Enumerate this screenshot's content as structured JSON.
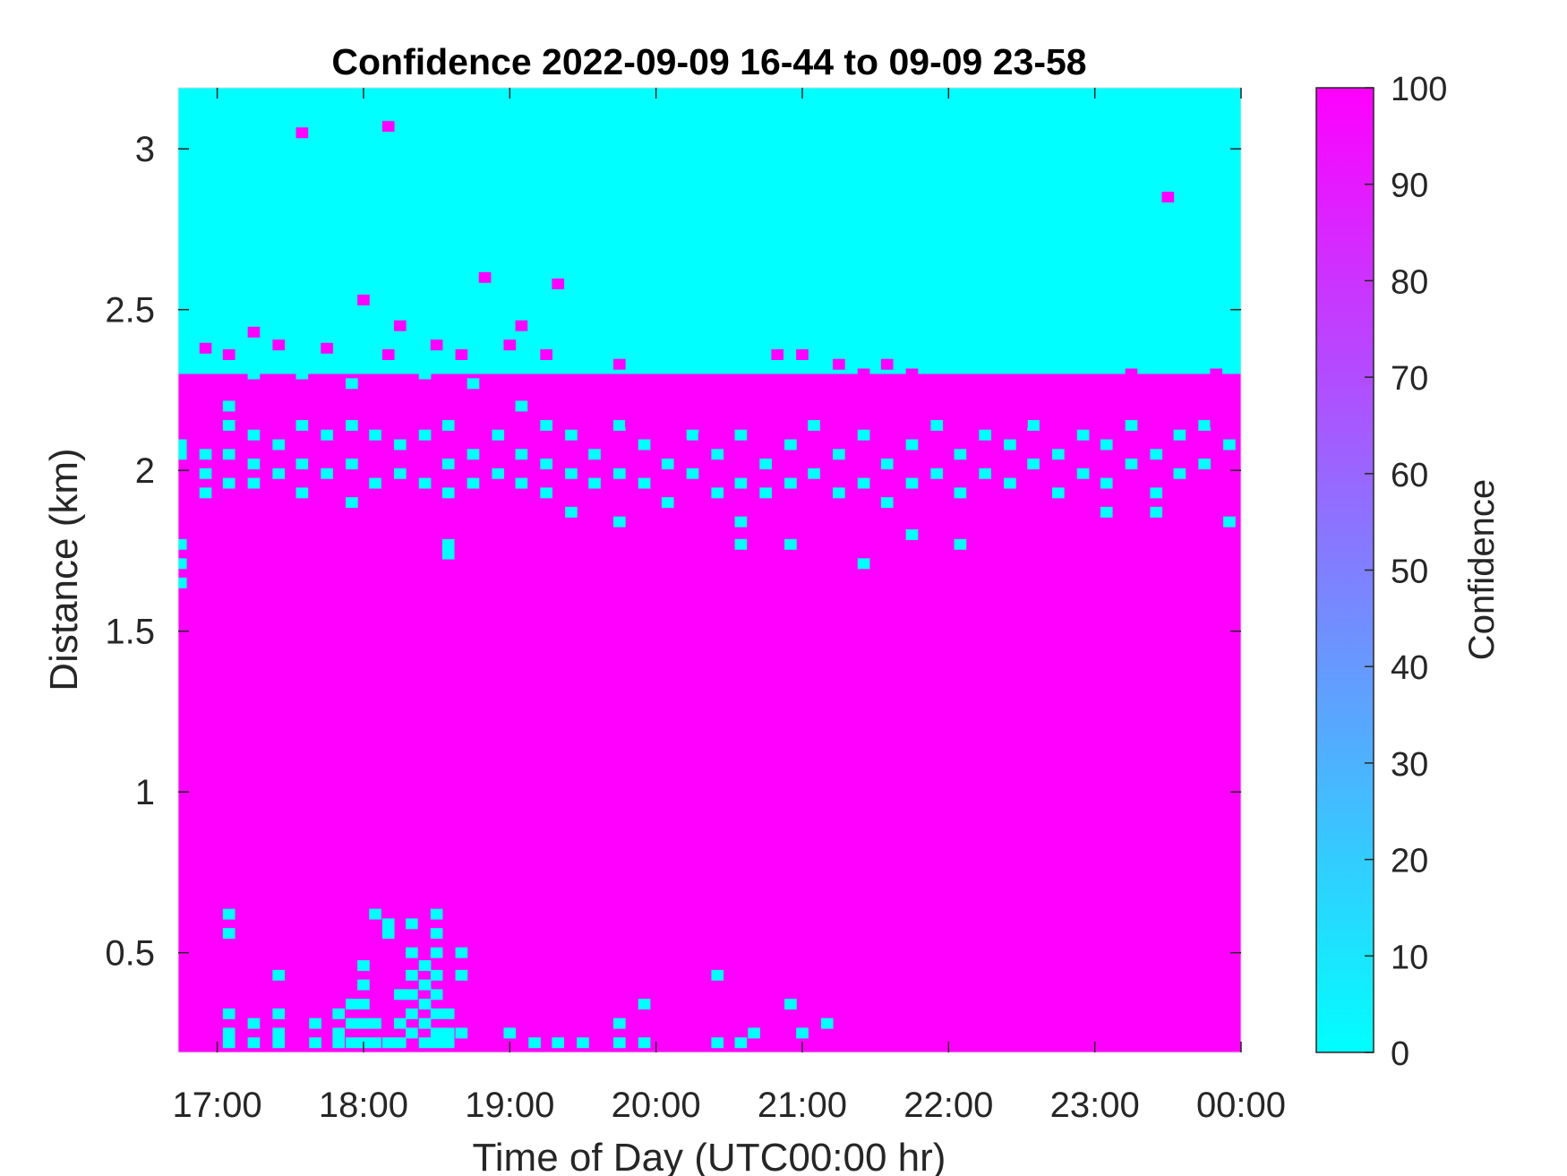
{
  "chart_data": {
    "type": "heatmap",
    "title": "Confidence 2022-09-09 16-44 to 09-09 23-58",
    "xlabel": "Time of Day (UTC00:00 hr)",
    "ylabel": "Distance (km)",
    "colorbar_label": "Confidence",
    "x_range_hours": [
      16.733,
      24.0
    ],
    "y_range_km": [
      0.19,
      3.19
    ],
    "x_ticks": [
      {
        "value": 17,
        "label": "17:00"
      },
      {
        "value": 18,
        "label": "18:00"
      },
      {
        "value": 19,
        "label": "19:00"
      },
      {
        "value": 20,
        "label": "20:00"
      },
      {
        "value": 21,
        "label": "21:00"
      },
      {
        "value": 22,
        "label": "22:00"
      },
      {
        "value": 23,
        "label": "23:00"
      },
      {
        "value": 24,
        "label": "00:00"
      }
    ],
    "y_ticks": [
      {
        "value": 0.5,
        "label": "0.5"
      },
      {
        "value": 1,
        "label": "1"
      },
      {
        "value": 1.5,
        "label": "1.5"
      },
      {
        "value": 2,
        "label": "2"
      },
      {
        "value": 2.5,
        "label": "2.5"
      },
      {
        "value": 3,
        "label": "3"
      }
    ],
    "colorbar_ticks": [
      {
        "value": 0,
        "label": "0"
      },
      {
        "value": 10,
        "label": "10"
      },
      {
        "value": 20,
        "label": "20"
      },
      {
        "value": 30,
        "label": "30"
      },
      {
        "value": 40,
        "label": "40"
      },
      {
        "value": 50,
        "label": "50"
      },
      {
        "value": 60,
        "label": "60"
      },
      {
        "value": 70,
        "label": "70"
      },
      {
        "value": 80,
        "label": "80"
      },
      {
        "value": 90,
        "label": "90"
      },
      {
        "value": 100,
        "label": "100"
      }
    ],
    "colorbar_range": [
      0,
      100
    ],
    "colormap": {
      "low": "#00ffff",
      "high": "#ff00ff"
    },
    "background_value": 100,
    "low_confidence_above_km": 2.3,
    "cyan_cells": [
      [
        16.75,
        2.08
      ],
      [
        16.75,
        2.05
      ],
      [
        16.75,
        1.77
      ],
      [
        16.75,
        1.71
      ],
      [
        16.75,
        1.65
      ],
      [
        16.92,
        2.36
      ],
      [
        16.92,
        2.05
      ],
      [
        16.92,
        1.99
      ],
      [
        16.92,
        1.93
      ],
      [
        17.08,
        2.33
      ],
      [
        17.08,
        2.2
      ],
      [
        17.08,
        2.14
      ],
      [
        17.08,
        2.05
      ],
      [
        17.08,
        1.96
      ],
      [
        17.25,
        2.3
      ],
      [
        17.25,
        2.11
      ],
      [
        17.25,
        2.02
      ],
      [
        17.25,
        1.96
      ],
      [
        17.42,
        2.36
      ],
      [
        17.42,
        2.08
      ],
      [
        17.42,
        1.99
      ],
      [
        17.58,
        2.3
      ],
      [
        17.58,
        2.14
      ],
      [
        17.58,
        2.02
      ],
      [
        17.58,
        1.93
      ],
      [
        17.75,
        2.36
      ],
      [
        17.75,
        2.11
      ],
      [
        17.75,
        1.99
      ],
      [
        17.92,
        2.27
      ],
      [
        17.92,
        2.14
      ],
      [
        17.92,
        2.02
      ],
      [
        17.92,
        1.9
      ],
      [
        18.08,
        2.39
      ],
      [
        18.08,
        2.11
      ],
      [
        18.08,
        1.96
      ],
      [
        18.25,
        2.33
      ],
      [
        18.25,
        2.08
      ],
      [
        18.25,
        1.99
      ],
      [
        18.42,
        2.3
      ],
      [
        18.42,
        2.11
      ],
      [
        18.42,
        1.96
      ],
      [
        18.58,
        2.36
      ],
      [
        18.58,
        2.14
      ],
      [
        18.58,
        2.02
      ],
      [
        18.58,
        1.93
      ],
      [
        18.58,
        1.77
      ],
      [
        18.58,
        1.74
      ],
      [
        18.75,
        2.27
      ],
      [
        18.75,
        2.05
      ],
      [
        18.75,
        1.96
      ],
      [
        18.92,
        2.33
      ],
      [
        18.92,
        2.11
      ],
      [
        18.92,
        1.99
      ],
      [
        19.08,
        2.2
      ],
      [
        19.08,
        2.05
      ],
      [
        19.08,
        1.96
      ],
      [
        19.25,
        2.14
      ],
      [
        19.25,
        2.02
      ],
      [
        19.25,
        1.93
      ],
      [
        19.42,
        2.11
      ],
      [
        19.42,
        1.99
      ],
      [
        19.42,
        1.87
      ],
      [
        19.58,
        2.05
      ],
      [
        19.58,
        1.96
      ],
      [
        19.75,
        2.14
      ],
      [
        19.75,
        1.99
      ],
      [
        19.75,
        1.84
      ],
      [
        19.92,
        2.08
      ],
      [
        19.92,
        1.96
      ],
      [
        20.08,
        2.02
      ],
      [
        20.08,
        1.9
      ],
      [
        20.25,
        2.11
      ],
      [
        20.25,
        1.99
      ],
      [
        20.42,
        2.05
      ],
      [
        20.42,
        1.93
      ],
      [
        20.58,
        2.11
      ],
      [
        20.58,
        1.96
      ],
      [
        20.58,
        1.84
      ],
      [
        20.58,
        1.77
      ],
      [
        20.75,
        2.02
      ],
      [
        20.75,
        1.93
      ],
      [
        20.92,
        2.08
      ],
      [
        20.92,
        1.96
      ],
      [
        20.92,
        1.77
      ],
      [
        21.08,
        2.14
      ],
      [
        21.08,
        1.99
      ],
      [
        21.25,
        2.05
      ],
      [
        21.25,
        1.93
      ],
      [
        21.42,
        2.11
      ],
      [
        21.42,
        1.96
      ],
      [
        21.42,
        1.71
      ],
      [
        21.58,
        2.02
      ],
      [
        21.58,
        1.9
      ],
      [
        21.75,
        2.08
      ],
      [
        21.75,
        1.96
      ],
      [
        21.75,
        1.8
      ],
      [
        21.92,
        2.14
      ],
      [
        21.92,
        1.99
      ],
      [
        22.08,
        2.05
      ],
      [
        22.08,
        1.93
      ],
      [
        22.08,
        1.77
      ],
      [
        22.25,
        2.11
      ],
      [
        22.25,
        1.99
      ],
      [
        22.42,
        2.08
      ],
      [
        22.42,
        1.96
      ],
      [
        22.58,
        2.14
      ],
      [
        22.58,
        2.02
      ],
      [
        22.75,
        2.05
      ],
      [
        22.75,
        1.93
      ],
      [
        22.92,
        2.11
      ],
      [
        22.92,
        1.99
      ],
      [
        23.08,
        2.08
      ],
      [
        23.08,
        1.96
      ],
      [
        23.08,
        1.87
      ],
      [
        23.25,
        2.14
      ],
      [
        23.25,
        2.02
      ],
      [
        23.42,
        2.05
      ],
      [
        23.42,
        1.93
      ],
      [
        23.42,
        1.87
      ],
      [
        23.58,
        2.11
      ],
      [
        23.58,
        1.99
      ],
      [
        23.75,
        2.14
      ],
      [
        23.75,
        2.02
      ],
      [
        23.92,
        2.08
      ],
      [
        23.92,
        1.84
      ],
      [
        17.08,
        0.62
      ],
      [
        17.08,
        0.56
      ],
      [
        17.08,
        0.31
      ],
      [
        17.08,
        0.25
      ],
      [
        17.08,
        0.22
      ],
      [
        17.25,
        0.28
      ],
      [
        17.25,
        0.22
      ],
      [
        17.42,
        0.43
      ],
      [
        17.42,
        0.31
      ],
      [
        17.42,
        0.25
      ],
      [
        17.42,
        0.22
      ],
      [
        17.67,
        0.28
      ],
      [
        17.67,
        0.22
      ],
      [
        17.83,
        0.31
      ],
      [
        17.83,
        0.25
      ],
      [
        17.83,
        0.22
      ],
      [
        17.92,
        0.34
      ],
      [
        17.92,
        0.28
      ],
      [
        17.92,
        0.22
      ],
      [
        18.0,
        0.46
      ],
      [
        18.0,
        0.4
      ],
      [
        18.0,
        0.34
      ],
      [
        18.0,
        0.28
      ],
      [
        18.0,
        0.22
      ],
      [
        18.08,
        0.62
      ],
      [
        18.08,
        0.28
      ],
      [
        18.08,
        0.22
      ],
      [
        18.17,
        0.59
      ],
      [
        18.17,
        0.56
      ],
      [
        18.17,
        0.22
      ],
      [
        18.25,
        0.37
      ],
      [
        18.25,
        0.28
      ],
      [
        18.25,
        0.22
      ],
      [
        18.33,
        0.59
      ],
      [
        18.33,
        0.5
      ],
      [
        18.33,
        0.43
      ],
      [
        18.33,
        0.37
      ],
      [
        18.33,
        0.31
      ],
      [
        18.33,
        0.25
      ],
      [
        18.42,
        0.46
      ],
      [
        18.42,
        0.4
      ],
      [
        18.42,
        0.34
      ],
      [
        18.42,
        0.28
      ],
      [
        18.42,
        0.22
      ],
      [
        18.5,
        0.62
      ],
      [
        18.5,
        0.56
      ],
      [
        18.5,
        0.5
      ],
      [
        18.5,
        0.43
      ],
      [
        18.5,
        0.37
      ],
      [
        18.5,
        0.31
      ],
      [
        18.5,
        0.25
      ],
      [
        18.5,
        0.22
      ],
      [
        18.58,
        0.31
      ],
      [
        18.58,
        0.25
      ],
      [
        18.58,
        0.22
      ],
      [
        18.67,
        0.5
      ],
      [
        18.67,
        0.43
      ],
      [
        18.67,
        0.25
      ],
      [
        19.0,
        0.25
      ],
      [
        19.17,
        0.22
      ],
      [
        19.33,
        0.22
      ],
      [
        19.5,
        0.22
      ],
      [
        19.75,
        0.28
      ],
      [
        19.75,
        0.22
      ],
      [
        19.92,
        0.34
      ],
      [
        19.92,
        0.22
      ],
      [
        20.42,
        0.43
      ],
      [
        20.42,
        0.22
      ],
      [
        20.58,
        0.22
      ],
      [
        20.67,
        0.25
      ],
      [
        20.92,
        0.34
      ],
      [
        21.0,
        0.25
      ],
      [
        21.17,
        0.28
      ]
    ],
    "magenta_cells": [
      [
        17.58,
        3.05
      ],
      [
        18.17,
        3.07
      ],
      [
        23.5,
        2.85
      ],
      [
        18.0,
        2.53
      ],
      [
        18.83,
        2.6
      ],
      [
        19.33,
        2.58
      ],
      [
        17.25,
        2.43
      ],
      [
        18.25,
        2.45
      ],
      [
        19.08,
        2.45
      ],
      [
        16.92,
        2.38
      ],
      [
        17.08,
        2.36
      ],
      [
        17.42,
        2.39
      ],
      [
        17.75,
        2.38
      ],
      [
        18.17,
        2.36
      ],
      [
        18.5,
        2.39
      ],
      [
        18.67,
        2.36
      ],
      [
        19.0,
        2.39
      ],
      [
        19.25,
        2.36
      ],
      [
        19.75,
        2.33
      ],
      [
        20.5,
        2.27
      ],
      [
        20.83,
        2.36
      ],
      [
        21.0,
        2.36
      ],
      [
        21.25,
        2.33
      ],
      [
        21.42,
        2.3
      ],
      [
        21.58,
        2.33
      ],
      [
        21.75,
        2.3
      ],
      [
        21.92,
        2.27
      ],
      [
        22.08,
        2.24
      ],
      [
        22.25,
        2.21
      ],
      [
        22.42,
        2.24
      ],
      [
        22.58,
        2.2
      ],
      [
        23.25,
        2.3
      ],
      [
        23.58,
        2.27
      ],
      [
        23.83,
        2.3
      ],
      [
        23.92,
        2.24
      ],
      [
        24.0,
        2.2
      ],
      [
        21.17,
        2.21
      ],
      [
        21.33,
        2.18
      ],
      [
        21.5,
        2.21
      ],
      [
        21.67,
        2.18
      ],
      [
        21.83,
        2.24
      ],
      [
        22.0,
        2.18
      ],
      [
        22.17,
        2.15
      ],
      [
        22.33,
        2.18
      ],
      [
        22.5,
        2.15
      ],
      [
        22.67,
        2.12
      ],
      [
        22.83,
        2.15
      ],
      [
        23.0,
        2.18
      ],
      [
        23.17,
        2.21
      ],
      [
        23.33,
        2.18
      ],
      [
        23.5,
        2.21
      ],
      [
        23.67,
        2.18
      ],
      [
        23.83,
        2.15
      ],
      [
        19.42,
        2.21
      ],
      [
        19.58,
        2.18
      ],
      [
        19.67,
        2.1
      ],
      [
        19.83,
        2.15
      ],
      [
        20.0,
        2.12
      ],
      [
        20.17,
        2.08
      ],
      [
        20.33,
        2.1
      ],
      [
        20.67,
        2.1
      ],
      [
        20.83,
        2.07
      ]
    ]
  }
}
